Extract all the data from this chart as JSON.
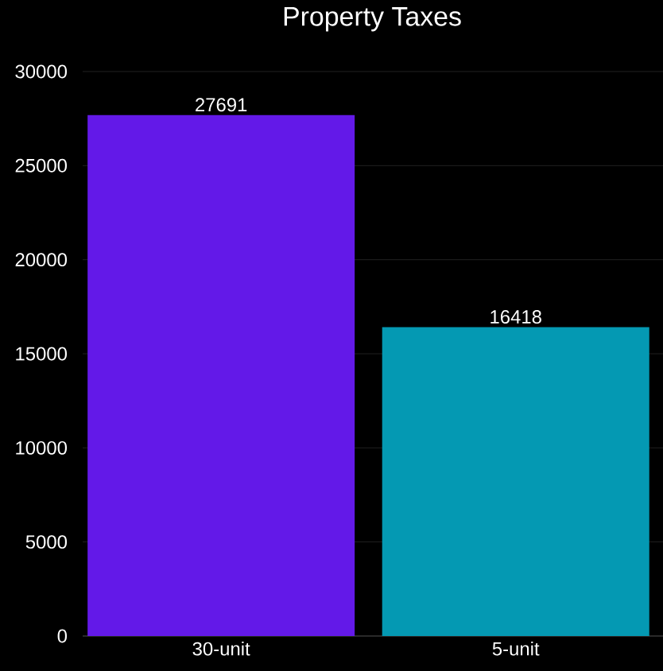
{
  "chart_data": {
    "type": "bar",
    "title": "Property Taxes",
    "categories": [
      "30-unit",
      "5-unit"
    ],
    "values": [
      27691,
      16418
    ],
    "colors": [
      "#6319e8",
      "#0499b3"
    ],
    "ylim": [
      0,
      30000
    ],
    "yticks": [
      0,
      5000,
      10000,
      15000,
      20000,
      25000,
      30000
    ],
    "grid": "y",
    "data_labels": true
  }
}
